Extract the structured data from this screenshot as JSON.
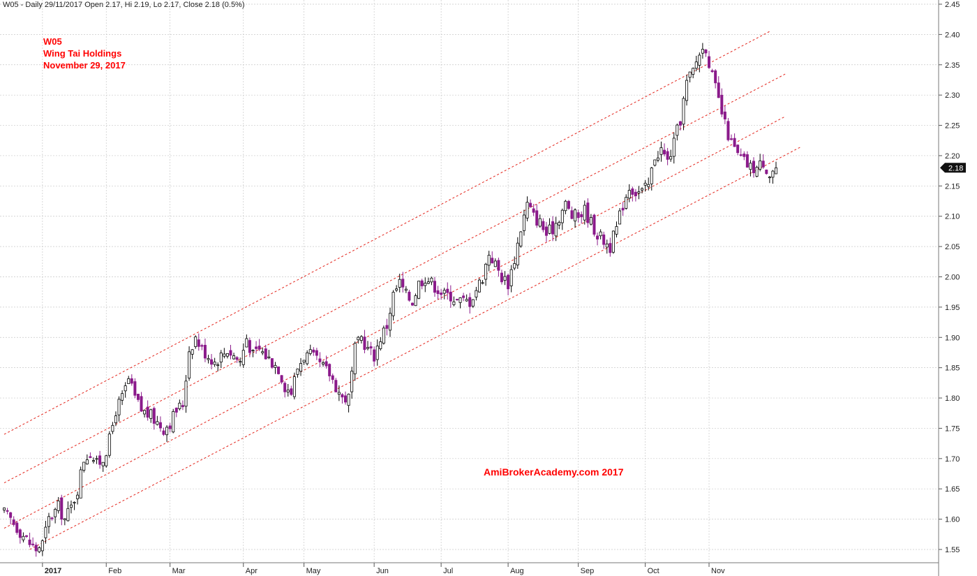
{
  "header": {
    "info": "W05 - Daily 29/11/2017 Open 2.17, Hi 2.19, Lo 2.17, Close 2.18 (0.5%)",
    "code": "W05",
    "name": "Wing Tai Holdings",
    "date": "November 29, 2017",
    "watermark": "AmiBrokerAcademy.com  2017",
    "last_price_label": "2.18"
  },
  "colors": {
    "up_fill": "#ffffff",
    "down_fill": "#8b1a8b",
    "candle_outline": "#000000",
    "channel_line": "#e3241b",
    "grid": "#c8c8c8",
    "annotation": "#ff0000"
  },
  "chart_data": {
    "type": "candlestick",
    "title": "W05 - Daily 29/11/2017 Open 2.17, Hi 2.19, Lo 2.17, Close 2.18 (0.5%)",
    "y_ticks": [
      "2.45",
      "2.40",
      "2.35",
      "2.30",
      "2.25",
      "2.20",
      "2.15",
      "2.10",
      "2.05",
      "2.00",
      "1.95",
      "1.90",
      "1.85",
      "1.80",
      "1.75",
      "1.70",
      "1.65",
      "1.60",
      "1.55"
    ],
    "ylim": [
      1.535,
      2.45
    ],
    "x_labels": [
      {
        "label": "2017",
        "bold": true,
        "index": 12
      },
      {
        "label": "Feb",
        "index": 32
      },
      {
        "label": "Mar",
        "index": 52
      },
      {
        "label": "Apr",
        "index": 75
      },
      {
        "label": "May",
        "index": 94
      },
      {
        "label": "Jun",
        "index": 116
      },
      {
        "label": "Jul",
        "index": 137
      },
      {
        "label": "Aug",
        "index": 158
      },
      {
        "label": "Sep",
        "index": 180
      },
      {
        "label": "Oct",
        "index": 201
      },
      {
        "label": "Nov",
        "index": 221
      }
    ],
    "grid": true,
    "last_price": 2.18,
    "channel_lines": [
      {
        "start": {
          "x": 0,
          "y": 1.74
        },
        "end": {
          "x": 240,
          "y": 2.405
        }
      },
      {
        "start": {
          "x": 0,
          "y": 1.66
        },
        "end": {
          "x": 245,
          "y": 2.335
        }
      },
      {
        "start": {
          "x": 0,
          "y": 1.585
        },
        "end": {
          "x": 245,
          "y": 2.265
        }
      },
      {
        "start": {
          "x": 8,
          "y": 1.55
        },
        "end": {
          "x": 250,
          "y": 2.215
        }
      }
    ],
    "anchor_closes": [
      [
        0,
        1.61
      ],
      [
        2,
        1.6
      ],
      [
        5,
        1.58
      ],
      [
        8,
        1.56
      ],
      [
        10,
        1.55
      ],
      [
        12,
        1.56
      ],
      [
        14,
        1.6
      ],
      [
        17,
        1.62
      ],
      [
        19,
        1.6
      ],
      [
        21,
        1.62
      ],
      [
        23,
        1.65
      ],
      [
        25,
        1.7
      ],
      [
        27,
        1.71
      ],
      [
        29,
        1.69
      ],
      [
        31,
        1.7
      ],
      [
        33,
        1.73
      ],
      [
        35,
        1.78
      ],
      [
        37,
        1.8
      ],
      [
        39,
        1.83
      ],
      [
        41,
        1.8
      ],
      [
        43,
        1.78
      ],
      [
        46,
        1.77
      ],
      [
        48,
        1.76
      ],
      [
        50,
        1.75
      ],
      [
        52,
        1.76
      ],
      [
        54,
        1.78
      ],
      [
        56,
        1.79
      ],
      [
        58,
        1.88
      ],
      [
        60,
        1.9
      ],
      [
        62,
        1.88
      ],
      [
        64,
        1.87
      ],
      [
        66,
        1.86
      ],
      [
        68,
        1.87
      ],
      [
        70,
        1.88
      ],
      [
        72,
        1.87
      ],
      [
        74,
        1.86
      ],
      [
        76,
        1.9
      ],
      [
        78,
        1.87
      ],
      [
        80,
        1.88
      ],
      [
        82,
        1.87
      ],
      [
        84,
        1.86
      ],
      [
        86,
        1.85
      ],
      [
        88,
        1.82
      ],
      [
        90,
        1.81
      ],
      [
        92,
        1.85
      ],
      [
        94,
        1.87
      ],
      [
        96,
        1.87
      ],
      [
        98,
        1.86
      ],
      [
        100,
        1.85
      ],
      [
        102,
        1.84
      ],
      [
        104,
        1.82
      ],
      [
        106,
        1.8
      ],
      [
        108,
        1.8
      ],
      [
        110,
        1.88
      ],
      [
        112,
        1.9
      ],
      [
        114,
        1.88
      ],
      [
        116,
        1.87
      ],
      [
        118,
        1.9
      ],
      [
        120,
        1.92
      ],
      [
        122,
        1.97
      ],
      [
        124,
        1.99
      ],
      [
        126,
        1.97
      ],
      [
        128,
        1.96
      ],
      [
        130,
        1.99
      ],
      [
        132,
        2.0
      ],
      [
        134,
        1.99
      ],
      [
        136,
        1.98
      ],
      [
        138,
        1.97
      ],
      [
        140,
        1.97
      ],
      [
        142,
        1.96
      ],
      [
        144,
        1.96
      ],
      [
        146,
        1.96
      ],
      [
        148,
        1.98
      ],
      [
        150,
        2.0
      ],
      [
        152,
        2.04
      ],
      [
        154,
        2.02
      ],
      [
        156,
        2.0
      ],
      [
        158,
        1.99
      ],
      [
        160,
        2.03
      ],
      [
        162,
        2.08
      ],
      [
        164,
        2.12
      ],
      [
        166,
        2.1
      ],
      [
        168,
        2.09
      ],
      [
        170,
        2.07
      ],
      [
        172,
        2.08
      ],
      [
        174,
        2.1
      ],
      [
        176,
        2.12
      ],
      [
        178,
        2.1
      ],
      [
        180,
        2.1
      ],
      [
        182,
        2.11
      ],
      [
        184,
        2.09
      ],
      [
        186,
        2.07
      ],
      [
        188,
        2.06
      ],
      [
        190,
        2.05
      ],
      [
        192,
        2.08
      ],
      [
        194,
        2.12
      ],
      [
        196,
        2.15
      ],
      [
        198,
        2.14
      ],
      [
        200,
        2.14
      ],
      [
        202,
        2.15
      ],
      [
        204,
        2.2
      ],
      [
        206,
        2.21
      ],
      [
        208,
        2.19
      ],
      [
        210,
        2.22
      ],
      [
        212,
        2.26
      ],
      [
        214,
        2.32
      ],
      [
        216,
        2.34
      ],
      [
        218,
        2.37
      ],
      [
        220,
        2.38
      ],
      [
        222,
        2.33
      ],
      [
        224,
        2.29
      ],
      [
        226,
        2.25
      ],
      [
        228,
        2.22
      ],
      [
        230,
        2.2
      ],
      [
        232,
        2.19
      ],
      [
        234,
        2.18
      ],
      [
        236,
        2.18
      ],
      [
        238,
        2.19
      ],
      [
        240,
        2.17
      ],
      [
        242,
        2.18
      ]
    ],
    "last_candle": {
      "open": 2.17,
      "high": 2.19,
      "low": 2.17,
      "close": 2.18
    },
    "candle_count": 243
  }
}
